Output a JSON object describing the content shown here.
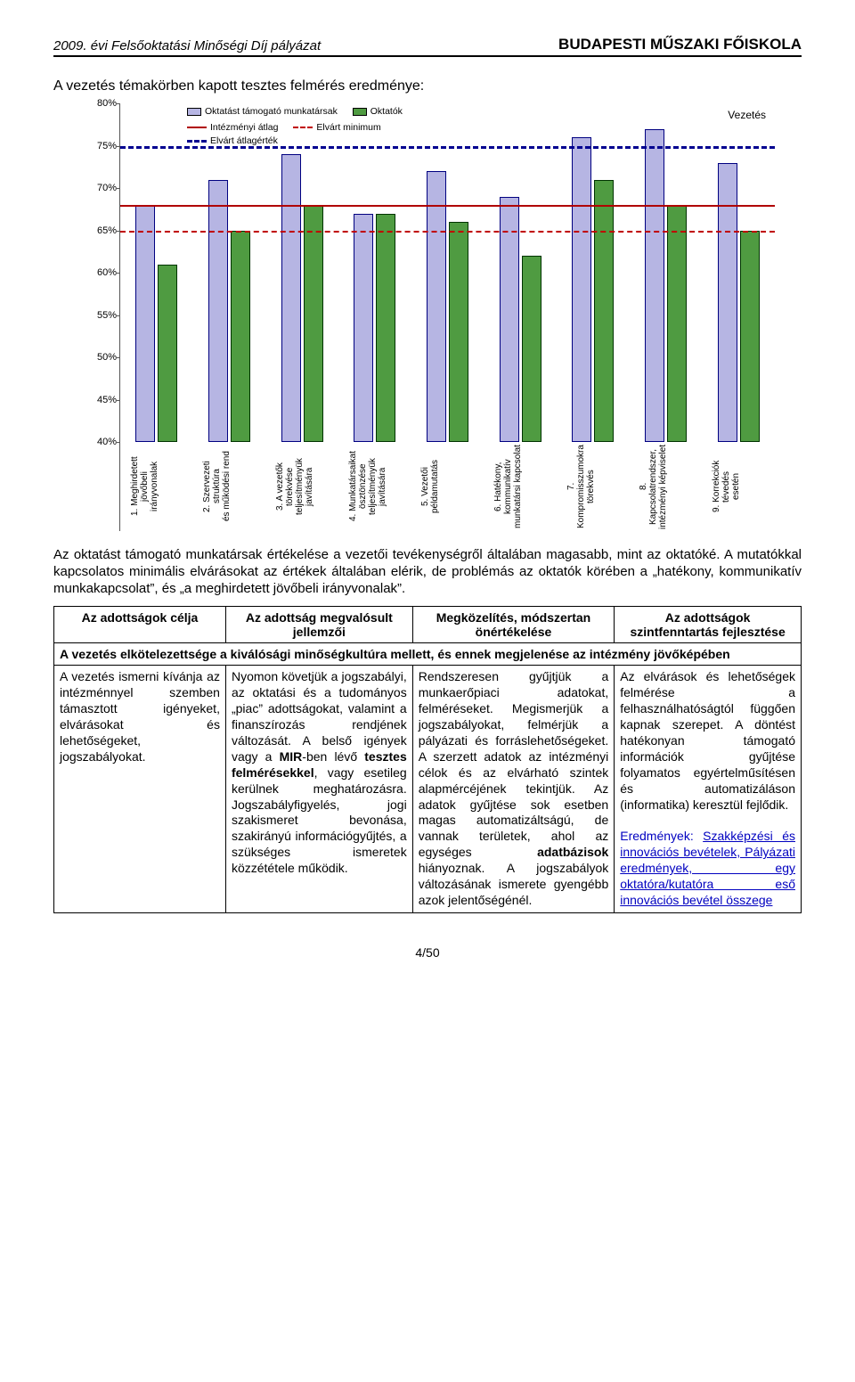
{
  "header": {
    "left": "2009. évi Felsőoktatási Minőségi Díj pályázat",
    "right": "BUDAPESTI MŰSZAKI FŐISKOLA"
  },
  "section_title": "A vezetés témakörben kapott tesztes felmérés eredménye:",
  "chart": {
    "title_right": "Vezetés",
    "legend": {
      "series_a": "Oktatást támogató munkatársak",
      "series_b": "Oktatók",
      "line_instavg": "Intézményi átlag",
      "line_reqmin": "Elvárt minimum",
      "line_reqavg": "Elvárt átlagérték"
    },
    "colors": {
      "bar_a": "#b6b5e3",
      "bar_b": "#4f9b41",
      "bar_a_border": "#000080",
      "bar_b_border": "#003300",
      "line_instavg": "#b00000",
      "line_reqmin": "#c00000",
      "line_reqavg": "#000090",
      "axis": "#555555",
      "bg": "#ffffff"
    },
    "y": {
      "min": 40,
      "max": 80,
      "step": 5
    },
    "ref_lines": {
      "instavg": 68,
      "reqmin": 65,
      "reqavg": 75
    },
    "categories": [
      "1. Meghirdetett\njövőbeli\nirányvonalak",
      "2. Szervezeti\nstruktúra\nés működési rend",
      "3. A vezetők\ntörekvése\nteljesítményük\njavítására",
      "4. Munkatársaikat\nösztönzése\nteljesítményük\njavítására",
      "5. Vezetői\npéldamutatás",
      "6. Hatékony,\nkommunikatív\nmunkatársi kapcsolat",
      "7.\nKompromisszumokra\ntörekvés",
      "8.\nKapcsolatrendszer,\nintézményi képviselet",
      "9. Korrekciók\ntévedés\nesetén"
    ],
    "values_a": [
      68,
      71,
      74,
      67,
      72,
      69,
      76,
      77,
      73
    ],
    "values_b": [
      61,
      65,
      68,
      67,
      66,
      62,
      71,
      68,
      65
    ]
  },
  "body_para": "Az oktatást támogató munkatársak értékelése a vezetői tevékenységről általában magasabb, mint az oktatóké. A mutatókkal kapcsolatos minimális elvárásokat az értékek általában elérik, de problémás az oktatók körében a „hatékony, kommunikatív munkakapcsolat”, és „a meghirdetett jövőbeli irányvonalak”.",
  "table": {
    "headers": [
      "Az adottságok célja",
      "Az adottság megvalósult jellemzői",
      "Megközelítés, módszertan önértékelése",
      "Az adottságok szintfenntartás fejlesztése"
    ],
    "span_header": "A vezetés elkötelezettsége a kiválósági minőségkultúra mellett, és ennek megjelenése az intézmény jövőképében",
    "cells": {
      "c1": "A vezetés ismerni kívánja az intézménnyel szemben támasztott igényeket, elvárásokat és lehetőségeket, jogszabályokat.",
      "c2_pre": "Nyomon követjük a jogszabályi, az oktatási és a tudományos „piac” adottságokat, valamint a finanszírozás rendjének változását. A belső igények vagy a ",
      "c2_mir": "MIR",
      "c2_mid1": "-ben lévő ",
      "c2_bold1": "tesztes felmérésekkel",
      "c2_mid2": ", vagy esetileg kerülnek meghatározásra. Jogszabályfigyelés, jogi szakismeret bevonása, szakirányú információgyűjtés, a szükséges ismeretek közzététele működik.",
      "c3_pre": "Rendszeresen gyűjtjük a munkaerőpiaci adatokat, felméréseket. Megismerjük a jogszabályokat, felmérjük a pályázati és forráslehetőségeket. A szerzett adatok az intézményi célok és az elvárható szintek alapmércéjének tekintjük. Az adatok gyűjtése sok esetben magas automatizáltságú, de vannak területek, ahol az egységes ",
      "c3_bold": "adatbázisok",
      "c3_post": " hiányoznak. A jogszabályok változásának ismerete gyengébb azok jelentőségénél.",
      "c4_pre": "Az elvárások és lehetőségek felmérése a felhasználhatóságtól függően kapnak szerepet. A döntést hatékonyan támogató információk gyűjtése folyamatos egyértelműsítésen és automatizáláson (informatika) keresztül fejlődik.",
      "c4_res_label": "Eredmények:",
      "c4_res_links": " Szakképzési és innovációs bevételek, Pályázati eredmények, egy oktatóra/kutatóra eső innovációs bevétel összege"
    }
  },
  "footer": "4/50"
}
